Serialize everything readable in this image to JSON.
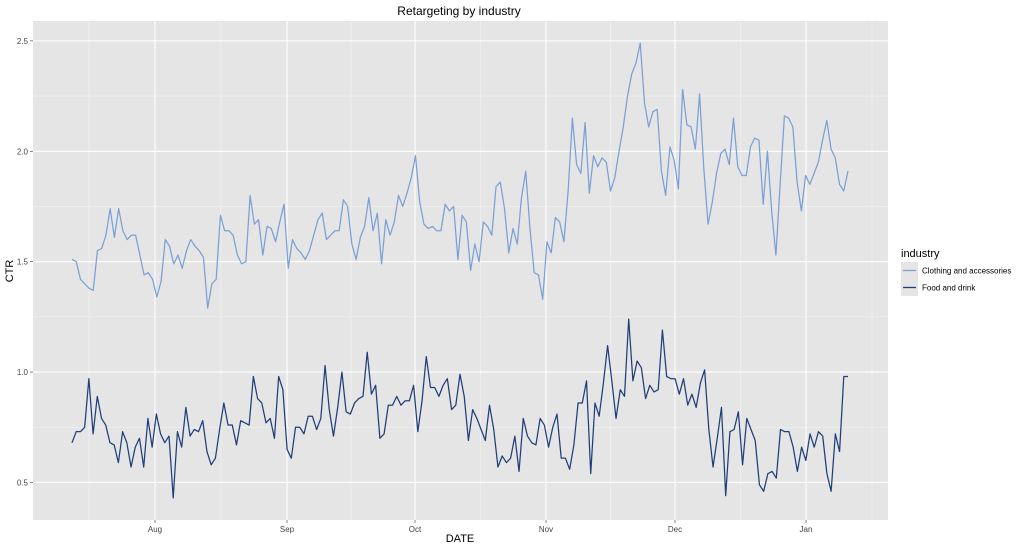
{
  "chart_data": {
    "type": "line",
    "title": "Retargeting by industry",
    "xlabel": "DATE",
    "ylabel": "CTR",
    "x_ticks": [
      "Aug",
      "Sep",
      "Oct",
      "Nov",
      "Dec",
      "Jan"
    ],
    "y_ticks": [
      "0.5",
      "1.0",
      "1.5",
      "2.0",
      "2.5"
    ],
    "ylim": [
      0.33,
      2.59
    ],
    "grid": true,
    "legend": {
      "title": "industry",
      "position": "right"
    },
    "colors": {
      "panel": "#e5e5e5",
      "grid": "#ffffff",
      "clothing": "#7aa0d6",
      "food": "#1f3f7a"
    },
    "series": [
      {
        "name": "Clothing and accessories",
        "values": [
          1.51,
          1.5,
          1.42,
          1.4,
          1.38,
          1.37,
          1.55,
          1.56,
          1.62,
          1.74,
          1.61,
          1.74,
          1.64,
          1.6,
          1.62,
          1.62,
          1.53,
          1.44,
          1.45,
          1.42,
          1.34,
          1.41,
          1.6,
          1.57,
          1.49,
          1.53,
          1.47,
          1.55,
          1.6,
          1.57,
          1.55,
          1.52,
          1.29,
          1.4,
          1.42,
          1.71,
          1.64,
          1.64,
          1.62,
          1.53,
          1.49,
          1.5,
          1.8,
          1.67,
          1.69,
          1.53,
          1.66,
          1.65,
          1.59,
          1.68,
          1.76,
          1.47,
          1.6,
          1.56,
          1.54,
          1.51,
          1.55,
          1.62,
          1.69,
          1.72,
          1.6,
          1.62,
          1.64,
          1.64,
          1.78,
          1.75,
          1.58,
          1.51,
          1.61,
          1.66,
          1.79,
          1.64,
          1.72,
          1.49,
          1.69,
          1.62,
          1.68,
          1.8,
          1.75,
          1.81,
          1.88,
          1.98,
          1.77,
          1.67,
          1.65,
          1.66,
          1.64,
          1.64,
          1.76,
          1.73,
          1.75,
          1.51,
          1.71,
          1.68,
          1.46,
          1.58,
          1.5,
          1.68,
          1.66,
          1.62,
          1.84,
          1.86,
          1.74,
          1.54,
          1.65,
          1.58,
          1.79,
          1.91,
          1.65,
          1.45,
          1.44,
          1.33,
          1.59,
          1.54,
          1.7,
          1.68,
          1.59,
          1.82,
          2.15,
          1.94,
          1.9,
          2.13,
          1.81,
          1.98,
          1.93,
          1.97,
          1.95,
          1.82,
          1.88,
          2.0,
          2.11,
          2.25,
          2.35,
          2.4,
          2.49,
          2.22,
          2.11,
          2.18,
          2.19,
          1.91,
          1.8,
          2.02,
          1.96,
          1.83,
          2.28,
          2.12,
          2.11,
          2.01,
          2.26,
          1.92,
          1.67,
          1.77,
          1.9,
          1.99,
          2.01,
          1.94,
          2.15,
          1.93,
          1.89,
          1.89,
          2.02,
          2.06,
          2.05,
          1.76,
          2.0,
          1.73,
          1.53,
          1.85,
          2.16,
          2.15,
          2.11,
          1.86,
          1.73,
          1.89,
          1.85,
          1.9,
          1.95,
          2.05,
          2.14,
          2.01,
          1.97,
          1.85,
          1.82,
          1.91
        ]
      },
      {
        "name": "Food and drink",
        "values": [
          0.68,
          0.73,
          0.73,
          0.75,
          0.97,
          0.72,
          0.89,
          0.79,
          0.76,
          0.68,
          0.67,
          0.59,
          0.73,
          0.68,
          0.57,
          0.66,
          0.7,
          0.57,
          0.79,
          0.66,
          0.81,
          0.72,
          0.68,
          0.71,
          0.43,
          0.73,
          0.66,
          0.84,
          0.71,
          0.74,
          0.73,
          0.78,
          0.64,
          0.58,
          0.61,
          0.74,
          0.86,
          0.76,
          0.76,
          0.67,
          0.78,
          0.77,
          0.76,
          0.98,
          0.88,
          0.86,
          0.77,
          0.79,
          0.7,
          0.98,
          0.92,
          0.65,
          0.61,
          0.75,
          0.75,
          0.72,
          0.8,
          0.8,
          0.74,
          0.79,
          1.03,
          0.83,
          0.71,
          0.84,
          1.0,
          0.82,
          0.81,
          0.86,
          0.88,
          0.89,
          1.09,
          0.9,
          0.94,
          0.7,
          0.72,
          0.85,
          0.85,
          0.89,
          0.85,
          0.87,
          0.87,
          0.94,
          0.73,
          0.87,
          1.07,
          0.93,
          0.93,
          0.89,
          0.94,
          0.97,
          0.83,
          0.85,
          0.99,
          0.89,
          0.69,
          0.83,
          0.79,
          0.74,
          0.69,
          0.85,
          0.74,
          0.57,
          0.62,
          0.59,
          0.61,
          0.71,
          0.55,
          0.79,
          0.71,
          0.68,
          0.67,
          0.79,
          0.76,
          0.66,
          0.75,
          0.81,
          0.61,
          0.61,
          0.56,
          0.67,
          0.86,
          0.86,
          0.96,
          0.54,
          0.86,
          0.8,
          0.95,
          1.12,
          0.96,
          0.79,
          0.92,
          0.89,
          1.24,
          0.96,
          1.05,
          1.02,
          0.88,
          0.94,
          0.91,
          0.92,
          1.19,
          0.98,
          0.97,
          0.97,
          0.9,
          0.97,
          0.85,
          0.9,
          0.84,
          0.95,
          1.01,
          0.74,
          0.57,
          0.7,
          0.84,
          0.44,
          0.73,
          0.74,
          0.82,
          0.58,
          0.79,
          0.74,
          0.69,
          0.49,
          0.46,
          0.54,
          0.55,
          0.52,
          0.74,
          0.73,
          0.73,
          0.66,
          0.55,
          0.66,
          0.6,
          0.72,
          0.66,
          0.73,
          0.71,
          0.54,
          0.46,
          0.72,
          0.64,
          0.98,
          0.98
        ]
      }
    ]
  }
}
